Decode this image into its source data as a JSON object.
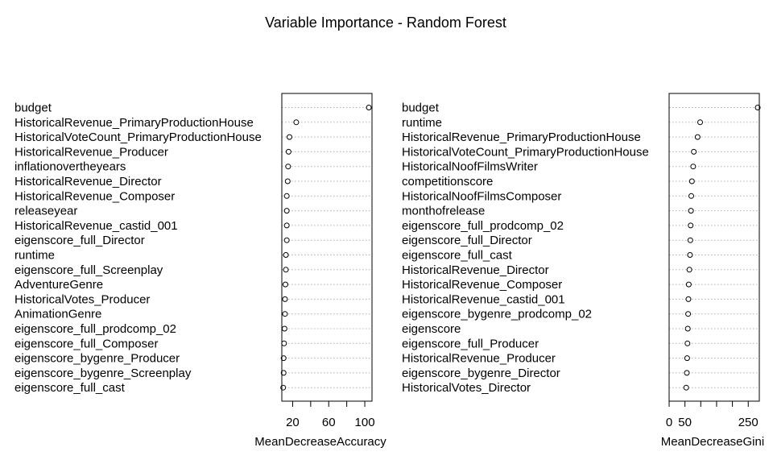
{
  "title": "Variable Importance - Random Forest",
  "chart_data": [
    {
      "type": "scatter",
      "xlabel": "MeanDecreaseAccuracy",
      "xlim": [
        8,
        108
      ],
      "x_ticks": [
        20,
        40,
        60,
        80,
        100
      ],
      "x_tick_labels": [
        "20",
        "",
        "60",
        "",
        "100"
      ],
      "grid": true,
      "categories": [
        "budget",
        "HistoricalRevenue_PrimaryProductionHouse",
        "HistoricalVoteCount_PrimaryProductionHouse",
        "HistoricalRevenue_Producer",
        "inflationovertheyears",
        "HistoricalRevenue_Director",
        "HistoricalRevenue_Composer",
        "releaseyear",
        "HistoricalRevenue_castid_001",
        "eigenscore_full_Director",
        "runtime",
        "eigenscore_full_Screenplay",
        "AdventureGenre",
        "HistoricalVotes_Producer",
        "AnimationGenre",
        "eigenscore_full_prodcomp_02",
        "eigenscore_full_Composer",
        "eigenscore_bygenre_Producer",
        "eigenscore_bygenre_Screenplay",
        "eigenscore_full_cast"
      ],
      "values": [
        104.5,
        24,
        16.5,
        15.5,
        15,
        14.5,
        13.5,
        13.5,
        13.5,
        13.5,
        12.5,
        12.5,
        12,
        11.5,
        11.5,
        11,
        10.5,
        10,
        10,
        9.5
      ]
    },
    {
      "type": "scatter",
      "xlabel": "MeanDecreaseGini",
      "xlim": [
        0,
        285
      ],
      "x_ticks": [
        0,
        50,
        100,
        150,
        200,
        250
      ],
      "x_tick_labels": [
        "0",
        "50",
        "",
        "",
        "",
        "250"
      ],
      "grid": true,
      "categories": [
        "budget",
        "runtime",
        "HistoricalRevenue_PrimaryProductionHouse",
        "HistoricalVoteCount_PrimaryProductionHouse",
        "HistoricalNoofFilmsWriter",
        "competitionscore",
        "HistoricalNoofFilmsComposer",
        "monthofrelease",
        "eigenscore_full_prodcomp_02",
        "eigenscore_full_Director",
        "eigenscore_full_cast",
        "HistoricalRevenue_Director",
        "HistoricalRevenue_Composer",
        "HistoricalRevenue_castid_001",
        "eigenscore_bygenre_prodcomp_02",
        "eigenscore",
        "eigenscore_full_Producer",
        "HistoricalRevenue_Producer",
        "eigenscore_bygenre_Director",
        "HistoricalVotes_Director"
      ],
      "values": [
        280,
        98,
        90,
        78,
        76,
        72,
        70,
        69,
        68,
        67,
        66,
        64,
        62,
        61,
        60,
        59,
        58,
        57,
        56,
        54
      ]
    }
  ]
}
